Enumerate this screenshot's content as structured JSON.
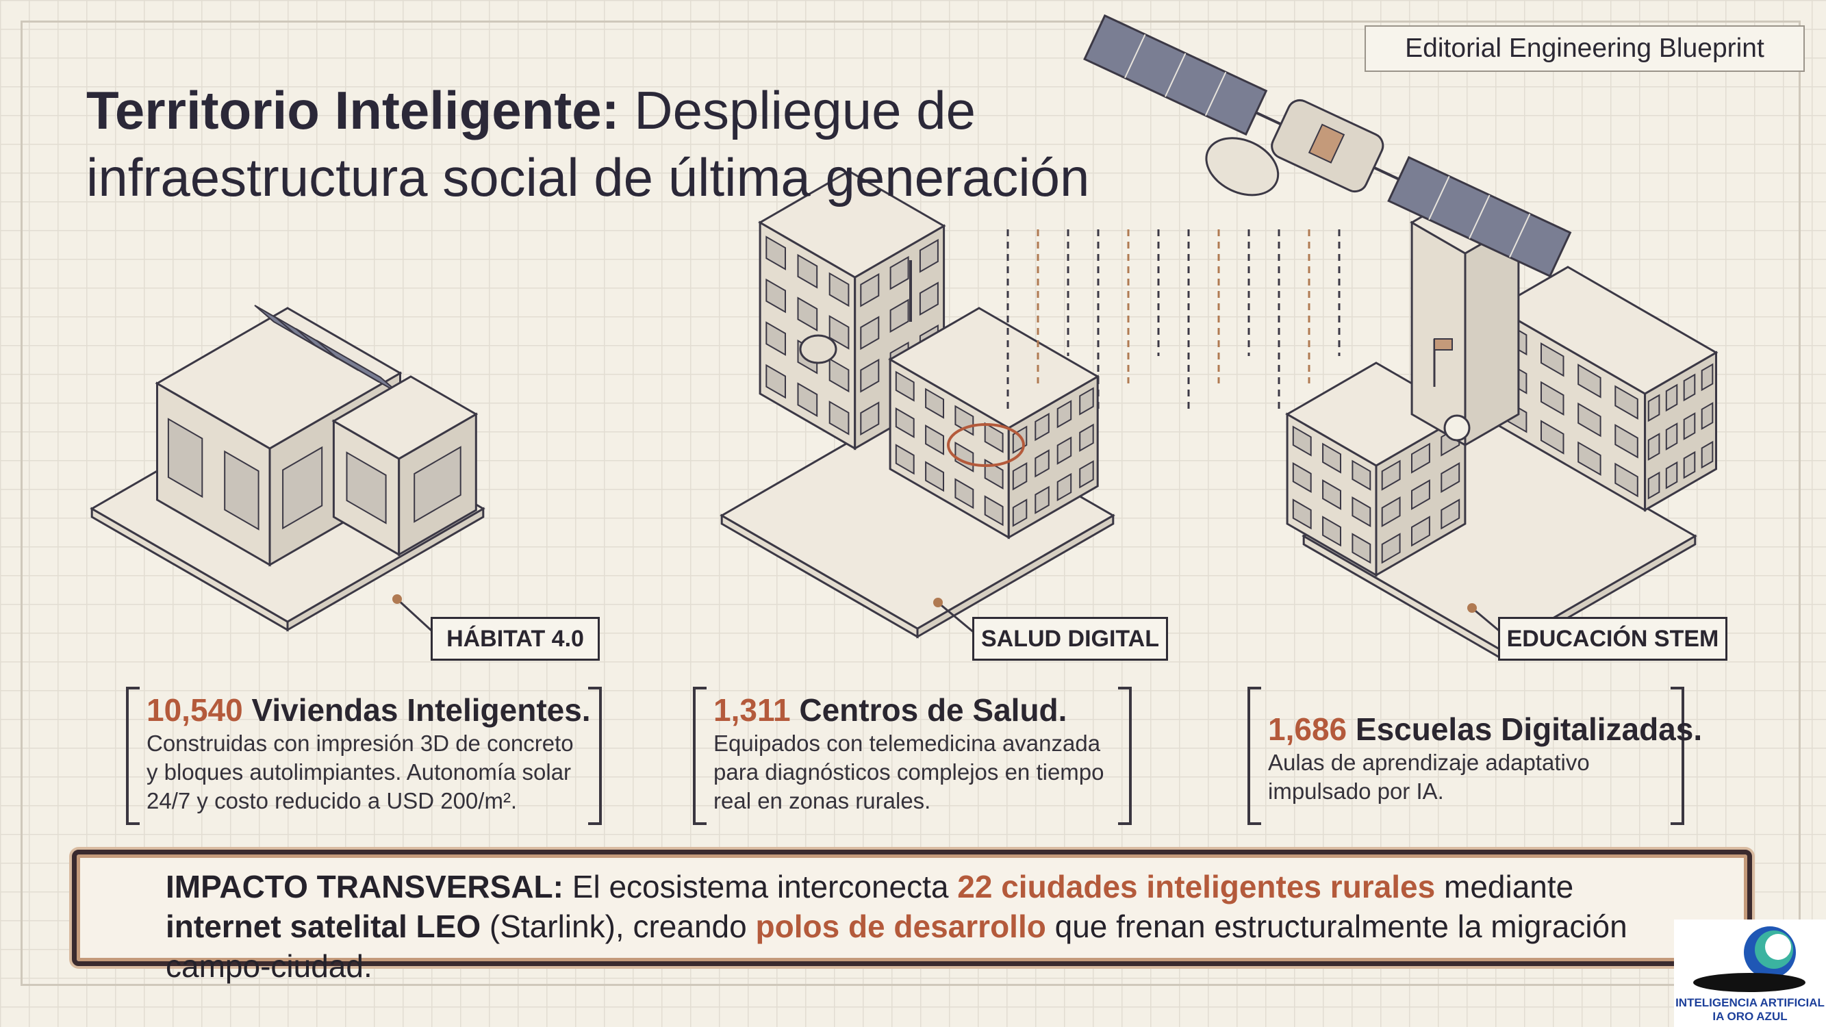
{
  "header": {
    "badge": "Editorial Engineering Blueprint",
    "title_bold": "Territorio Inteligente:",
    "title_rest": "Despliegue de infraestructura social de última generación"
  },
  "cards": [
    {
      "label": "HÁBITAT 4.0",
      "number": "10,540",
      "heading": "Viviendas Inteligentes.",
      "body": "Construidas con impresión 3D de concreto y bloques autolimpiantes. Autonomía solar 24/7 y costo reducido a USD 200/m²."
    },
    {
      "label": "SALUD DIGITAL",
      "number": "1,311",
      "heading": "Centros de Salud.",
      "body": "Equipados con telemedicina avanzada para diagnósticos complejos en tiempo real en zonas rurales."
    },
    {
      "label": "EDUCACIÓN STEM",
      "number": "1,686",
      "heading": "Escuelas Digitalizadas.",
      "body": "Aulas de aprendizaje adaptativo impulsado por IA."
    }
  ],
  "banner": {
    "segments": [
      {
        "text": "IMPACTO TRANSVERSAL:",
        "style": "bold"
      },
      {
        "text": " El ecosistema interconecta ",
        "style": "plain"
      },
      {
        "text": "22 ciudades inteligentes rurales",
        "style": "accent"
      },
      {
        "text": " mediante ",
        "style": "plain"
      },
      {
        "text": "internet satelital LEO",
        "style": "bold"
      },
      {
        "text": " (Starlink), creando ",
        "style": "plain"
      },
      {
        "text": "polos de desarrollo",
        "style": "accent"
      },
      {
        "text": " que frenan estructuralmente la migración campo-ciudad.",
        "style": "plain"
      }
    ]
  },
  "logo": {
    "line1": "INTELIGENCIA ARTIFICIAL",
    "line2": "IA ORO AZUL"
  }
}
